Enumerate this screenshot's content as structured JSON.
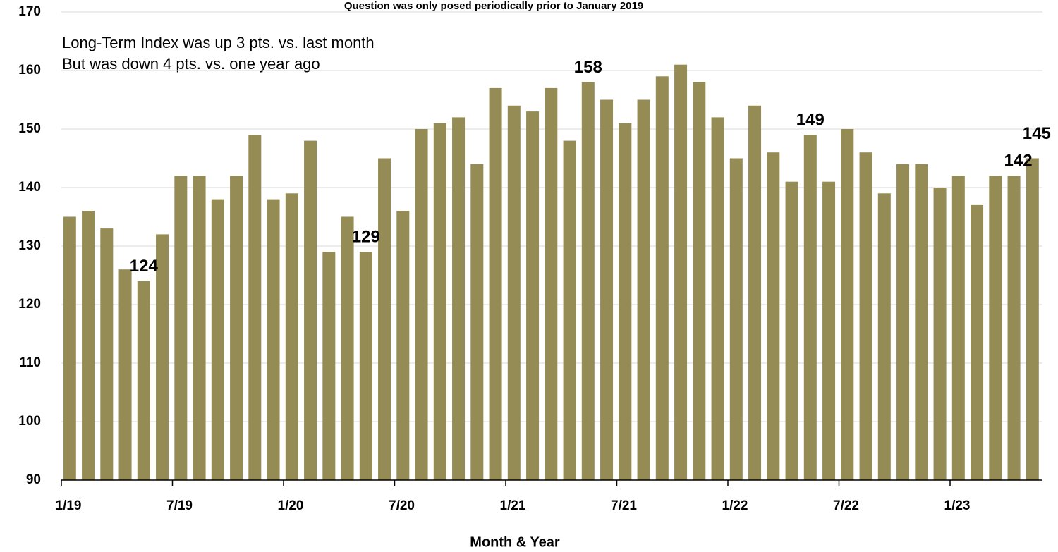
{
  "chart_data": {
    "type": "bar",
    "title": "Question was only posed periodically prior to January 2019",
    "annotations": [
      "Long-Term Index was up 3 pts. vs. last month",
      "But was down 4 pts. vs. one year ago"
    ],
    "x_label": "Month & Year",
    "categories": [
      "1/19",
      null,
      null,
      null,
      null,
      null,
      "7/19",
      null,
      null,
      null,
      null,
      null,
      "1/20",
      null,
      null,
      null,
      null,
      null,
      "7/20",
      null,
      null,
      null,
      null,
      null,
      "1/21",
      null,
      null,
      null,
      null,
      null,
      "7/21",
      null,
      null,
      null,
      null,
      null,
      "1/22",
      null,
      null,
      null,
      null,
      null,
      "7/22",
      null,
      null,
      null,
      null,
      null,
      "1/23",
      null,
      null,
      null,
      null
    ],
    "values": [
      135,
      136,
      133,
      126,
      124,
      132,
      142,
      142,
      138,
      142,
      149,
      138,
      139,
      148,
      129,
      135,
      129,
      145,
      136,
      150,
      151,
      152,
      144,
      157,
      154,
      153,
      157,
      148,
      158,
      155,
      151,
      155,
      159,
      161,
      158,
      152,
      145,
      154,
      146,
      141,
      149,
      141,
      150,
      146,
      139,
      144,
      144,
      140,
      142,
      137,
      142,
      142,
      145
    ],
    "labeled_points": [
      4,
      16,
      28,
      40,
      51,
      52
    ],
    "color": "#958b55",
    "ylim": [
      90,
      170
    ],
    "yticks": [
      90,
      100,
      110,
      120,
      130,
      140,
      150,
      160,
      170
    ],
    "grid": true
  }
}
